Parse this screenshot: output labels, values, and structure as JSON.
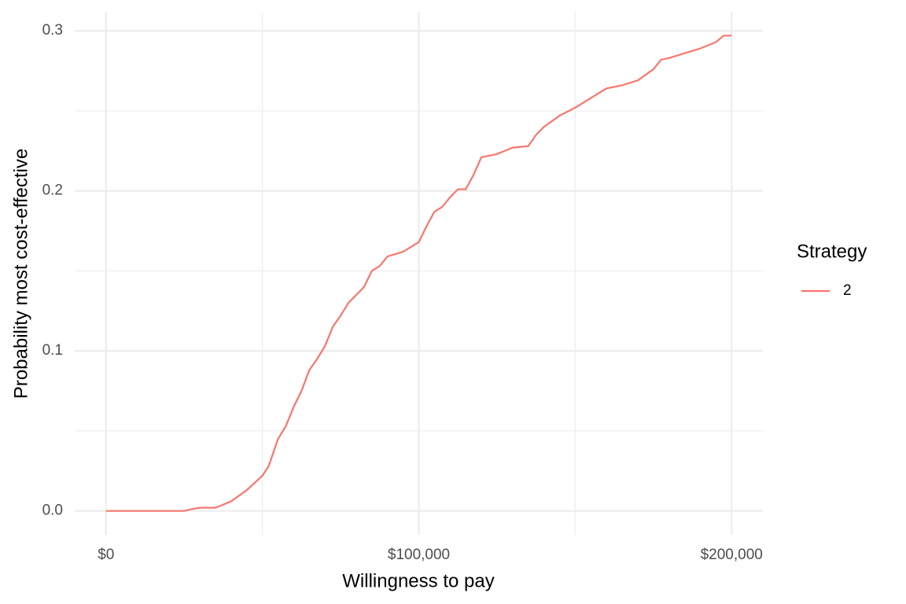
{
  "chart_data": {
    "type": "line",
    "x_label": "Willingness to pay",
    "y_label": "Probability most cost-effective",
    "legend_title": "Strategy",
    "legend_position": "right",
    "grid": true,
    "xlim": [
      -10000,
      210000
    ],
    "ylim": [
      -0.0149,
      0.3119
    ],
    "xticks": [
      {
        "value": 0,
        "label": "$0"
      },
      {
        "value": 100000,
        "label": "$100,000"
      },
      {
        "value": 200000,
        "label": "$200,000"
      }
    ],
    "yticks": [
      {
        "value": 0,
        "label": "0.0"
      },
      0.1,
      0.2,
      0.3
    ],
    "xminor": [
      50000,
      150000
    ],
    "yminor": [
      0.05,
      0.15,
      0.25
    ],
    "x": [
      0,
      25000,
      27000,
      30000,
      35000,
      40000,
      45000,
      50000,
      52000,
      55000,
      57500,
      60000,
      62500,
      65000,
      67500,
      70000,
      72500,
      75000,
      77500,
      80000,
      82500,
      85000,
      87500,
      90000,
      95000,
      100000,
      102500,
      105000,
      107500,
      110000,
      112500,
      115000,
      117500,
      120000,
      125000,
      130000,
      135000,
      137500,
      140000,
      145000,
      150000,
      155000,
      160000,
      165000,
      170000,
      175000,
      177500,
      180000,
      185000,
      190000,
      195000,
      197500,
      200000
    ],
    "series": [
      {
        "name": "2",
        "color": "#F8766D",
        "values": [
          0,
          0,
          0.001,
          0.002,
          0.002,
          0.006,
          0.013,
          0.022,
          0.028,
          0.045,
          0.053,
          0.065,
          0.075,
          0.088,
          0.095,
          0.103,
          0.115,
          0.122,
          0.13,
          0.135,
          0.14,
          0.15,
          0.153,
          0.159,
          0.162,
          0.168,
          0.178,
          0.187,
          0.19,
          0.196,
          0.201,
          0.201,
          0.21,
          0.221,
          0.223,
          0.227,
          0.228,
          0.235,
          0.24,
          0.247,
          0.252,
          0.258,
          0.264,
          0.266,
          0.269,
          0.276,
          0.282,
          0.283,
          0.286,
          0.289,
          0.293,
          0.297,
          0.297
        ]
      }
    ]
  }
}
